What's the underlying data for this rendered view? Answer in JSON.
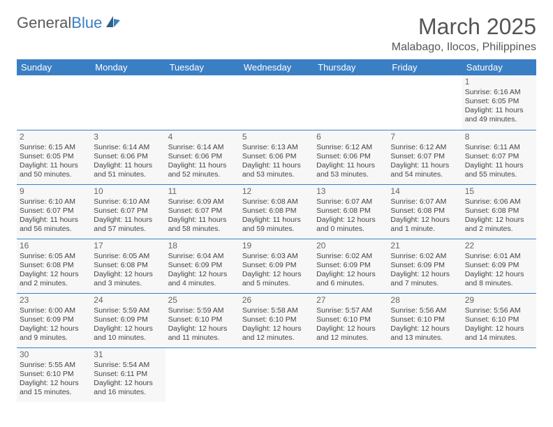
{
  "logo": {
    "text1": "General",
    "text2": "Blue"
  },
  "title": "March 2025",
  "location": "Malabago, Ilocos, Philippines",
  "colors": {
    "header_bg": "#3a7fc4",
    "header_fg": "#ffffff",
    "border": "#3a7fc4",
    "cell_bg": "#f7f7f7",
    "text": "#444444"
  },
  "weekdays": [
    "Sunday",
    "Monday",
    "Tuesday",
    "Wednesday",
    "Thursday",
    "Friday",
    "Saturday"
  ],
  "weeks": [
    [
      null,
      null,
      null,
      null,
      null,
      null,
      {
        "n": "1",
        "sr": "Sunrise: 6:16 AM",
        "ss": "Sunset: 6:05 PM",
        "dl": "Daylight: 11 hours and 49 minutes."
      }
    ],
    [
      {
        "n": "2",
        "sr": "Sunrise: 6:15 AM",
        "ss": "Sunset: 6:05 PM",
        "dl": "Daylight: 11 hours and 50 minutes."
      },
      {
        "n": "3",
        "sr": "Sunrise: 6:14 AM",
        "ss": "Sunset: 6:06 PM",
        "dl": "Daylight: 11 hours and 51 minutes."
      },
      {
        "n": "4",
        "sr": "Sunrise: 6:14 AM",
        "ss": "Sunset: 6:06 PM",
        "dl": "Daylight: 11 hours and 52 minutes."
      },
      {
        "n": "5",
        "sr": "Sunrise: 6:13 AM",
        "ss": "Sunset: 6:06 PM",
        "dl": "Daylight: 11 hours and 53 minutes."
      },
      {
        "n": "6",
        "sr": "Sunrise: 6:12 AM",
        "ss": "Sunset: 6:06 PM",
        "dl": "Daylight: 11 hours and 53 minutes."
      },
      {
        "n": "7",
        "sr": "Sunrise: 6:12 AM",
        "ss": "Sunset: 6:07 PM",
        "dl": "Daylight: 11 hours and 54 minutes."
      },
      {
        "n": "8",
        "sr": "Sunrise: 6:11 AM",
        "ss": "Sunset: 6:07 PM",
        "dl": "Daylight: 11 hours and 55 minutes."
      }
    ],
    [
      {
        "n": "9",
        "sr": "Sunrise: 6:10 AM",
        "ss": "Sunset: 6:07 PM",
        "dl": "Daylight: 11 hours and 56 minutes."
      },
      {
        "n": "10",
        "sr": "Sunrise: 6:10 AM",
        "ss": "Sunset: 6:07 PM",
        "dl": "Daylight: 11 hours and 57 minutes."
      },
      {
        "n": "11",
        "sr": "Sunrise: 6:09 AM",
        "ss": "Sunset: 6:07 PM",
        "dl": "Daylight: 11 hours and 58 minutes."
      },
      {
        "n": "12",
        "sr": "Sunrise: 6:08 AM",
        "ss": "Sunset: 6:08 PM",
        "dl": "Daylight: 11 hours and 59 minutes."
      },
      {
        "n": "13",
        "sr": "Sunrise: 6:07 AM",
        "ss": "Sunset: 6:08 PM",
        "dl": "Daylight: 12 hours and 0 minutes."
      },
      {
        "n": "14",
        "sr": "Sunrise: 6:07 AM",
        "ss": "Sunset: 6:08 PM",
        "dl": "Daylight: 12 hours and 1 minute."
      },
      {
        "n": "15",
        "sr": "Sunrise: 6:06 AM",
        "ss": "Sunset: 6:08 PM",
        "dl": "Daylight: 12 hours and 2 minutes."
      }
    ],
    [
      {
        "n": "16",
        "sr": "Sunrise: 6:05 AM",
        "ss": "Sunset: 6:08 PM",
        "dl": "Daylight: 12 hours and 2 minutes."
      },
      {
        "n": "17",
        "sr": "Sunrise: 6:05 AM",
        "ss": "Sunset: 6:08 PM",
        "dl": "Daylight: 12 hours and 3 minutes."
      },
      {
        "n": "18",
        "sr": "Sunrise: 6:04 AM",
        "ss": "Sunset: 6:09 PM",
        "dl": "Daylight: 12 hours and 4 minutes."
      },
      {
        "n": "19",
        "sr": "Sunrise: 6:03 AM",
        "ss": "Sunset: 6:09 PM",
        "dl": "Daylight: 12 hours and 5 minutes."
      },
      {
        "n": "20",
        "sr": "Sunrise: 6:02 AM",
        "ss": "Sunset: 6:09 PM",
        "dl": "Daylight: 12 hours and 6 minutes."
      },
      {
        "n": "21",
        "sr": "Sunrise: 6:02 AM",
        "ss": "Sunset: 6:09 PM",
        "dl": "Daylight: 12 hours and 7 minutes."
      },
      {
        "n": "22",
        "sr": "Sunrise: 6:01 AM",
        "ss": "Sunset: 6:09 PM",
        "dl": "Daylight: 12 hours and 8 minutes."
      }
    ],
    [
      {
        "n": "23",
        "sr": "Sunrise: 6:00 AM",
        "ss": "Sunset: 6:09 PM",
        "dl": "Daylight: 12 hours and 9 minutes."
      },
      {
        "n": "24",
        "sr": "Sunrise: 5:59 AM",
        "ss": "Sunset: 6:09 PM",
        "dl": "Daylight: 12 hours and 10 minutes."
      },
      {
        "n": "25",
        "sr": "Sunrise: 5:59 AM",
        "ss": "Sunset: 6:10 PM",
        "dl": "Daylight: 12 hours and 11 minutes."
      },
      {
        "n": "26",
        "sr": "Sunrise: 5:58 AM",
        "ss": "Sunset: 6:10 PM",
        "dl": "Daylight: 12 hours and 12 minutes."
      },
      {
        "n": "27",
        "sr": "Sunrise: 5:57 AM",
        "ss": "Sunset: 6:10 PM",
        "dl": "Daylight: 12 hours and 12 minutes."
      },
      {
        "n": "28",
        "sr": "Sunrise: 5:56 AM",
        "ss": "Sunset: 6:10 PM",
        "dl": "Daylight: 12 hours and 13 minutes."
      },
      {
        "n": "29",
        "sr": "Sunrise: 5:56 AM",
        "ss": "Sunset: 6:10 PM",
        "dl": "Daylight: 12 hours and 14 minutes."
      }
    ],
    [
      {
        "n": "30",
        "sr": "Sunrise: 5:55 AM",
        "ss": "Sunset: 6:10 PM",
        "dl": "Daylight: 12 hours and 15 minutes."
      },
      {
        "n": "31",
        "sr": "Sunrise: 5:54 AM",
        "ss": "Sunset: 6:11 PM",
        "dl": "Daylight: 12 hours and 16 minutes."
      },
      null,
      null,
      null,
      null,
      null
    ]
  ]
}
